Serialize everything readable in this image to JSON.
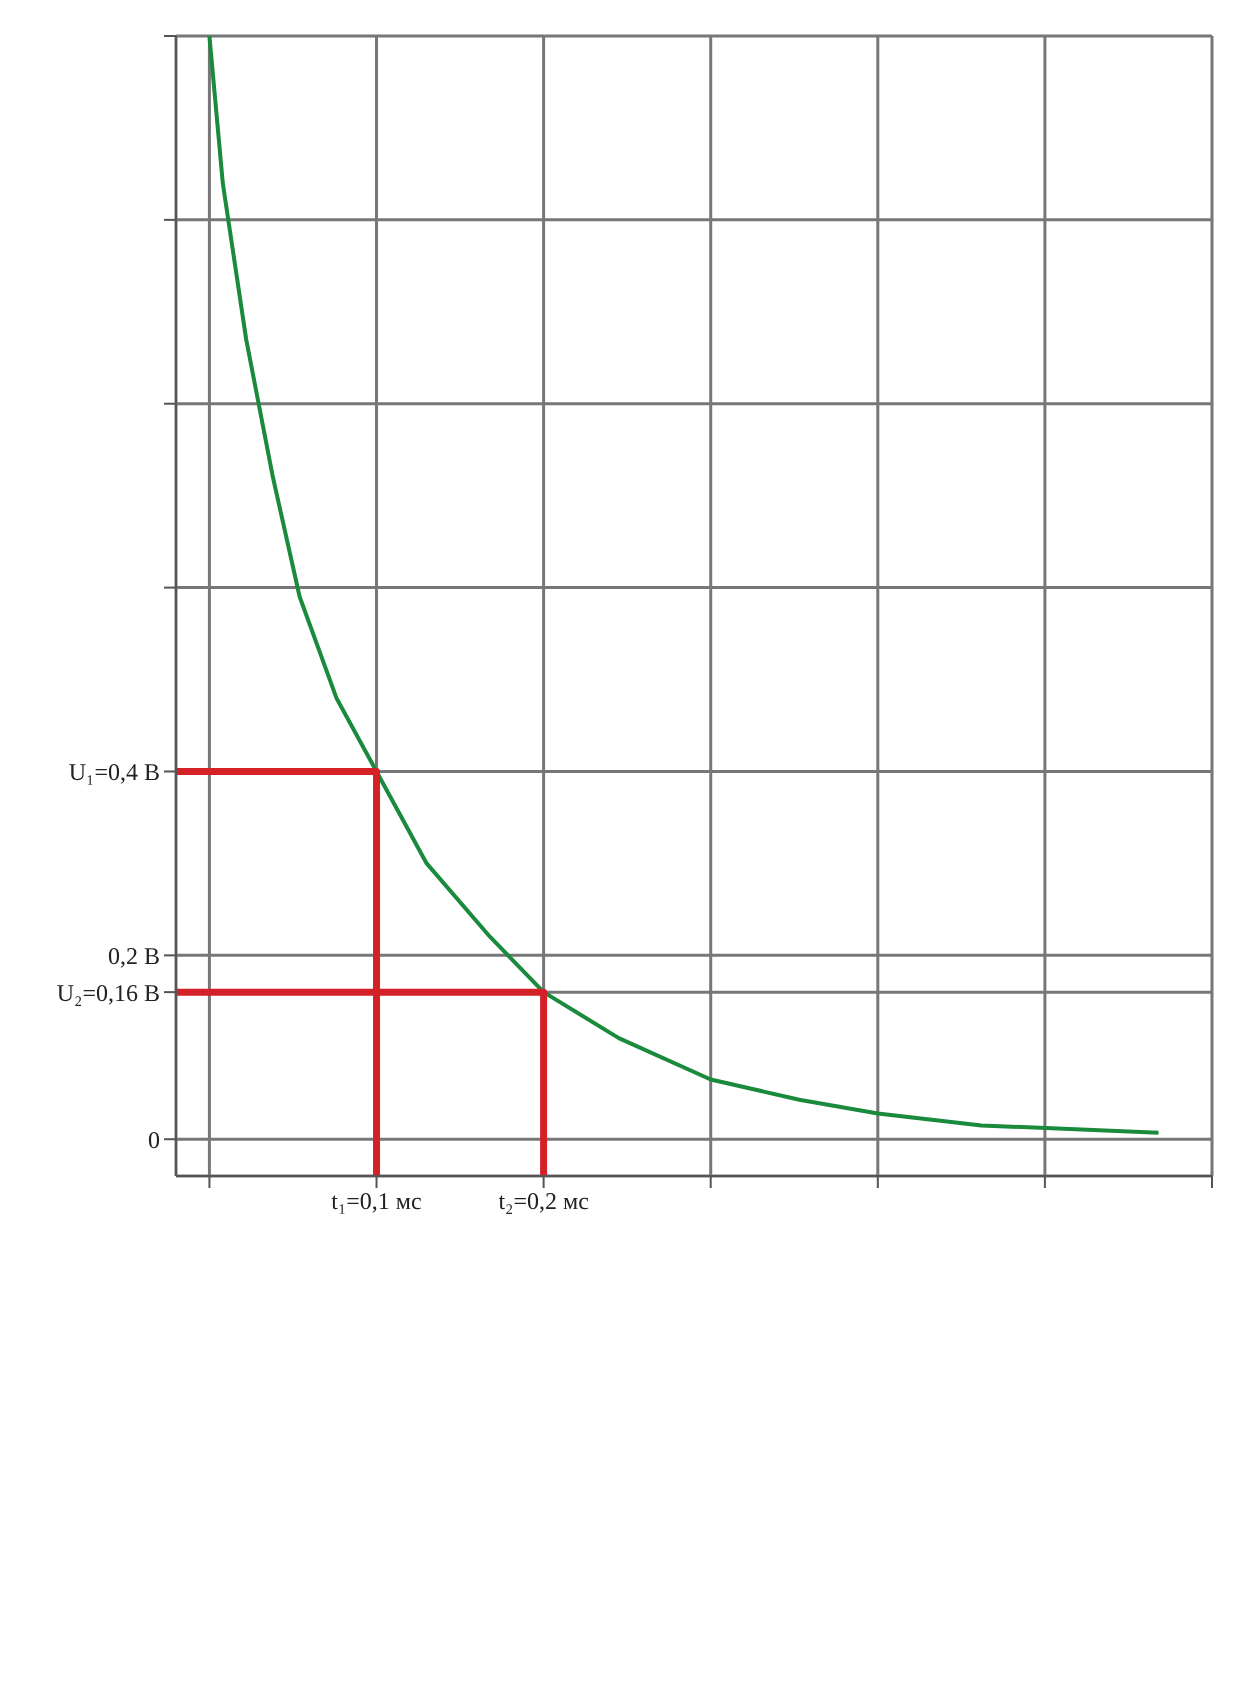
{
  "chart_data": {
    "type": "line",
    "xlim": [
      -0.02,
      0.6
    ],
    "ylim": [
      -0.04,
      1.2
    ],
    "xticks": [
      {
        "value": 0,
        "label": null
      },
      {
        "value": 0.1,
        "label": "t₁=0,1 мс"
      },
      {
        "value": 0.2,
        "label": "t₂=0,2 мс"
      },
      {
        "value": 0.3,
        "label": null
      },
      {
        "value": 0.4,
        "label": null
      },
      {
        "value": 0.5,
        "label": null
      },
      {
        "value": 0.6,
        "label": null
      }
    ],
    "yticks": [
      {
        "value": 0,
        "label": "0"
      },
      {
        "value": 0.16,
        "label": "U₂=0,16 В"
      },
      {
        "value": 0.2,
        "label": "0,2 В"
      },
      {
        "value": 0.4,
        "label": "U₁=0,4 В"
      },
      {
        "value": 0.6,
        "label": null
      },
      {
        "value": 0.8,
        "label": null
      },
      {
        "value": 1.0,
        "label": null
      },
      {
        "value": 1.2,
        "label": null
      }
    ],
    "grid": true,
    "series": [
      {
        "color": "#1a8a3c",
        "x": [
          0,
          0.008,
          0.022,
          0.038,
          0.054,
          0.076,
          0.1,
          0.13,
          0.168,
          0.2,
          0.245,
          0.3,
          0.353,
          0.4,
          0.462,
          0.568
        ],
        "values": [
          1.2,
          1.04,
          0.87,
          0.72,
          0.59,
          0.48,
          0.4,
          0.3,
          0.22,
          0.16,
          0.11,
          0.065,
          0.043,
          0.028,
          0.015,
          0.007
        ]
      },
      {
        "color": "#d42027",
        "x": [
          -0.02,
          0.1,
          0.1
        ],
        "values": [
          0.4,
          0.4,
          -0.04
        ]
      },
      {
        "color": "#d42027",
        "x": [
          -0.02,
          0.2,
          0.2
        ],
        "values": [
          0.16,
          0.16,
          -0.04
        ]
      }
    ]
  }
}
